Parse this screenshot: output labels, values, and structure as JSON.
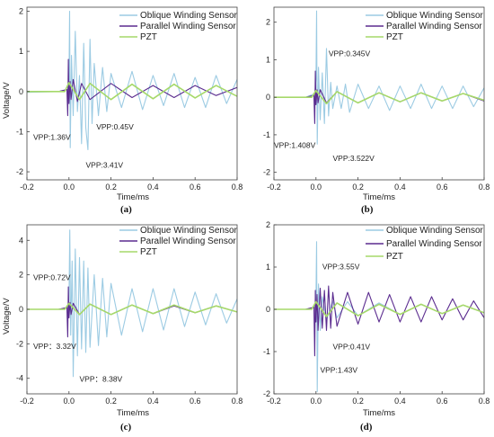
{
  "chart_data": [
    {
      "type": "line",
      "panel_label": "(a)",
      "xlabel": "Time/ms",
      "ylabel": "Voltage/V",
      "xlim": [
        -0.2,
        0.8
      ],
      "ylim": [
        -2.2,
        2.1
      ],
      "xticks": [
        "-0.2",
        "0.0",
        "0.2",
        "0.4",
        "0.6",
        "0.8"
      ],
      "yticks": [
        "-2",
        "-1",
        "0",
        "1",
        "2"
      ],
      "legend_position": "top-right",
      "series": [
        {
          "name": "Oblique Winding Sensor",
          "color": "#9ccbe3",
          "x": [
            -0.2,
            -0.05,
            -0.005,
            0.0,
            0.003,
            0.006,
            0.012,
            0.02,
            0.03,
            0.04,
            0.05,
            0.06,
            0.07,
            0.08,
            0.09,
            0.1,
            0.11,
            0.12,
            0.14,
            0.16,
            0.18,
            0.2,
            0.25,
            0.3,
            0.35,
            0.4,
            0.45,
            0.5,
            0.55,
            0.6,
            0.65,
            0.7,
            0.75,
            0.8
          ],
          "y": [
            -0.02,
            0.0,
            0.05,
            0.3,
            2.0,
            -1.4,
            0.9,
            -0.6,
            1.5,
            -0.5,
            0.4,
            -1.3,
            1.2,
            -0.9,
            -1.45,
            1.3,
            -0.8,
            0.7,
            -0.6,
            0.6,
            -0.5,
            0.45,
            -0.4,
            0.5,
            -0.45,
            0.4,
            -0.35,
            0.45,
            -0.4,
            0.35,
            -0.4,
            0.4,
            -0.3,
            0.3
          ]
        },
        {
          "name": "Parallel Winding Sensor",
          "color": "#5b2c8f",
          "x": [
            -0.2,
            -0.05,
            -0.01,
            -0.006,
            -0.003,
            0.0,
            0.005,
            0.01,
            0.02,
            0.04,
            0.06,
            0.1,
            0.2,
            0.3,
            0.4,
            0.5,
            0.6,
            0.7,
            0.8
          ],
          "y": [
            0.0,
            0.0,
            0.05,
            -0.6,
            0.8,
            -0.3,
            0.25,
            -0.2,
            0.3,
            -0.25,
            0.2,
            -0.2,
            0.2,
            -0.15,
            0.15,
            -0.15,
            0.15,
            -0.1,
            0.1
          ]
        },
        {
          "name": "PZT",
          "color": "#a6d96a",
          "x": [
            -0.2,
            -0.02,
            0.0,
            0.05,
            0.1,
            0.2,
            0.3,
            0.4,
            0.5,
            0.6,
            0.7,
            0.8
          ],
          "y": [
            0.0,
            0.0,
            0.22,
            -0.2,
            0.2,
            -0.2,
            0.18,
            -0.18,
            0.18,
            -0.16,
            0.15,
            -0.12
          ]
        }
      ],
      "annotations": [
        {
          "text": "VPP:1.36V",
          "x": -0.17,
          "y": -1.2
        },
        {
          "text": "VPP:0.45V",
          "x": 0.13,
          "y": -0.95
        },
        {
          "text": "VPP:3.41V",
          "x": 0.08,
          "y": -1.9
        }
      ]
    },
    {
      "type": "line",
      "panel_label": "(b)",
      "xlabel": "Time/ms",
      "ylabel": "",
      "xlim": [
        -0.2,
        0.8
      ],
      "ylim": [
        -2.2,
        2.4
      ],
      "xticks": [
        "-0.2",
        "0.0",
        "0.2",
        "0.4",
        "0.6",
        "0.8"
      ],
      "yticks": [
        "-2",
        "-1",
        "0",
        "1",
        "2"
      ],
      "legend_position": "top-right",
      "series": [
        {
          "name": "Oblique Winding Sensor",
          "color": "#9ccbe3",
          "x": [
            -0.2,
            -0.05,
            -0.005,
            0.0,
            0.003,
            0.006,
            0.012,
            0.02,
            0.03,
            0.04,
            0.05,
            0.06,
            0.07,
            0.08,
            0.1,
            0.12,
            0.14,
            0.16,
            0.2,
            0.25,
            0.3,
            0.35,
            0.4,
            0.45,
            0.5,
            0.55,
            0.6,
            0.65,
            0.7,
            0.75,
            0.8
          ],
          "y": [
            0.0,
            0.0,
            0.1,
            0.5,
            2.3,
            -1.25,
            0.8,
            -0.6,
            0.65,
            -0.7,
            1.3,
            -0.5,
            0.4,
            -0.3,
            0.3,
            -0.3,
            0.35,
            -0.4,
            0.35,
            -0.3,
            0.3,
            -0.35,
            0.3,
            -0.3,
            0.35,
            -0.3,
            0.3,
            -0.3,
            0.3,
            -0.25,
            0.25
          ]
        },
        {
          "name": "Parallel Winding Sensor",
          "color": "#5b2c8f",
          "x": [
            -0.2,
            -0.05,
            -0.01,
            -0.006,
            -0.003,
            0.0,
            0.005,
            0.01,
            0.02,
            0.05,
            0.1,
            0.2,
            0.3,
            0.4,
            0.5,
            0.6,
            0.7,
            0.8
          ],
          "y": [
            0.0,
            0.0,
            0.05,
            -0.7,
            0.7,
            -0.2,
            0.2,
            -0.15,
            0.2,
            -0.15,
            0.15,
            -0.15,
            0.12,
            -0.12,
            0.12,
            -0.1,
            0.1,
            -0.1
          ]
        },
        {
          "name": "PZT",
          "color": "#a6d96a",
          "x": [
            -0.2,
            -0.02,
            0.0,
            0.05,
            0.1,
            0.2,
            0.3,
            0.4,
            0.5,
            0.6,
            0.7,
            0.8
          ],
          "y": [
            0.0,
            0.0,
            0.18,
            -0.17,
            0.15,
            -0.15,
            0.12,
            -0.12,
            0.12,
            -0.1,
            0.1,
            -0.08
          ]
        }
      ],
      "annotations": [
        {
          "text": "VPP:0.345V",
          "x": 0.06,
          "y": 1.1
        },
        {
          "text": "VPP:1.408V",
          "x": -0.2,
          "y": -1.35
        },
        {
          "text": "VPP:3.522V",
          "x": 0.08,
          "y": -1.7
        }
      ]
    },
    {
      "type": "line",
      "panel_label": "(c)",
      "xlabel": "Time/ms",
      "ylabel": "Voltage/V",
      "xlim": [
        -0.2,
        0.8
      ],
      "ylim": [
        -4.9,
        4.9
      ],
      "xticks": [
        "-0.2",
        "0.0",
        "0.2",
        "0.4",
        "0.6",
        "0.8"
      ],
      "yticks": [
        "-4",
        "-2",
        "0",
        "2",
        "4"
      ],
      "legend_position": "top-right",
      "series": [
        {
          "name": "Oblique Winding Sensor",
          "color": "#9ccbe3",
          "x": [
            -0.2,
            -0.05,
            -0.005,
            0.0,
            0.004,
            0.008,
            0.015,
            0.02,
            0.03,
            0.04,
            0.05,
            0.06,
            0.07,
            0.08,
            0.09,
            0.1,
            0.12,
            0.14,
            0.16,
            0.18,
            0.2,
            0.25,
            0.3,
            0.35,
            0.4,
            0.45,
            0.5,
            0.55,
            0.6,
            0.65,
            0.7,
            0.75,
            0.8
          ],
          "y": [
            0.0,
            0.0,
            0.1,
            0.5,
            4.6,
            -1.5,
            2.8,
            -3.9,
            3.5,
            -2.7,
            3.0,
            -2.3,
            2.8,
            -2.5,
            2.4,
            -2.2,
            2.0,
            -2.1,
            1.8,
            -1.6,
            1.5,
            -1.5,
            1.2,
            -1.3,
            1.2,
            -1.2,
            1.2,
            -1.0,
            1.0,
            -0.9,
            0.9,
            -0.8,
            0.6
          ]
        },
        {
          "name": "Parallel Winding Sensor",
          "color": "#5b2c8f",
          "x": [
            -0.2,
            -0.05,
            -0.01,
            -0.006,
            -0.003,
            0.0,
            0.005,
            0.01,
            0.02,
            0.05,
            0.1,
            0.2,
            0.3,
            0.4,
            0.5,
            0.6,
            0.7,
            0.8
          ],
          "y": [
            0.0,
            0.0,
            0.1,
            -1.6,
            1.3,
            -0.5,
            0.4,
            -0.3,
            0.35,
            -0.3,
            0.3,
            -0.3,
            0.25,
            -0.25,
            0.2,
            -0.2,
            0.2,
            -0.15
          ]
        },
        {
          "name": "PZT",
          "color": "#a6d96a",
          "x": [
            -0.2,
            -0.02,
            0.0,
            0.05,
            0.1,
            0.2,
            0.3,
            0.4,
            0.5,
            0.6,
            0.7,
            0.8
          ],
          "y": [
            0.0,
            0.0,
            0.35,
            -0.3,
            0.3,
            -0.3,
            0.25,
            -0.25,
            0.25,
            -0.2,
            0.2,
            -0.15
          ]
        }
      ],
      "annotations": [
        {
          "text": "VPP:0.72V",
          "x": -0.17,
          "y": 1.7
        },
        {
          "text": "VPP：3.32V",
          "x": -0.17,
          "y": -2.3
        },
        {
          "text": "VPP：8.38V",
          "x": 0.05,
          "y": -4.2
        }
      ]
    },
    {
      "type": "line",
      "panel_label": "(d)",
      "xlabel": "Time/ms",
      "ylabel": "",
      "xlim": [
        -0.2,
        0.8
      ],
      "ylim": [
        -2.0,
        2.0
      ],
      "xticks": [
        "-0.2",
        "0.0",
        "0.2",
        "0.4",
        "0.6",
        "0.8"
      ],
      "yticks": [
        "-2",
        "-1",
        "0",
        "1",
        "2"
      ],
      "legend_position": "top-right",
      "series": [
        {
          "name": "Oblique Winding Sensor",
          "color": "#9ccbe3",
          "x": [
            -0.2,
            -0.05,
            -0.005,
            0.0,
            0.003,
            0.006,
            0.012,
            0.02,
            0.03,
            0.05,
            0.08,
            0.1,
            0.15,
            0.2,
            0.3,
            0.4,
            0.5,
            0.6,
            0.7,
            0.8
          ],
          "y": [
            0.0,
            0.0,
            0.05,
            0.3,
            1.6,
            -1.95,
            0.6,
            -0.5,
            0.3,
            -0.25,
            0.2,
            -0.2,
            0.18,
            -0.15,
            0.15,
            -0.12,
            0.12,
            -0.1,
            0.1,
            -0.08
          ]
        },
        {
          "name": "Parallel Winding Sensor",
          "color": "#5b2c8f",
          "x": [
            -0.2,
            -0.05,
            -0.01,
            -0.006,
            -0.003,
            0.0,
            0.005,
            0.01,
            0.02,
            0.03,
            0.04,
            0.05,
            0.06,
            0.07,
            0.08,
            0.1,
            0.15,
            0.2,
            0.25,
            0.3,
            0.35,
            0.4,
            0.45,
            0.5,
            0.55,
            0.6,
            0.65,
            0.7,
            0.75,
            0.8
          ],
          "y": [
            0.0,
            0.0,
            0.05,
            -1.1,
            0.45,
            -0.3,
            0.35,
            -0.5,
            0.5,
            -0.45,
            0.45,
            -0.5,
            0.55,
            -0.45,
            0.4,
            -0.4,
            0.4,
            -0.35,
            0.4,
            -0.3,
            0.35,
            -0.3,
            0.3,
            -0.3,
            0.3,
            -0.25,
            0.25,
            -0.25,
            0.2,
            -0.2
          ]
        },
        {
          "name": "PZT",
          "color": "#a6d96a",
          "x": [
            -0.2,
            -0.02,
            0.0,
            0.05,
            0.1,
            0.2,
            0.3,
            0.4,
            0.5,
            0.6,
            0.7,
            0.8
          ],
          "y": [
            0.0,
            0.0,
            0.18,
            -0.17,
            0.15,
            -0.15,
            0.12,
            -0.12,
            0.12,
            -0.1,
            0.1,
            -0.08
          ]
        }
      ],
      "annotations": [
        {
          "text": "VPP:3.55V",
          "x": 0.03,
          "y": 0.95
        },
        {
          "text": "VPP:0.41V",
          "x": 0.08,
          "y": -0.95
        },
        {
          "text": "VPP:1.43V",
          "x": 0.02,
          "y": -1.5
        }
      ]
    }
  ]
}
